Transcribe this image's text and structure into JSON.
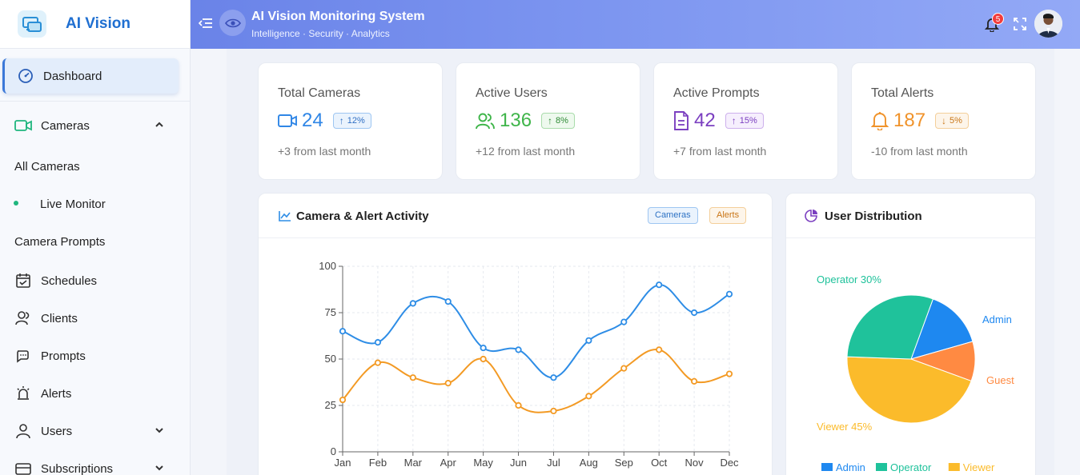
{
  "app": {
    "name": "AI Vision"
  },
  "header": {
    "title": "AI Vision Monitoring System",
    "subtitle": "Intelligence · Security · Analytics",
    "notification_count": "5"
  },
  "sidebar": {
    "items": [
      {
        "label": "Dashboard",
        "icon": "dashboard-gauge-icon",
        "active": true
      },
      {
        "label": "Cameras",
        "icon": "video-camera-icon",
        "expanded": true
      },
      {
        "label": "All Cameras",
        "sub": true
      },
      {
        "label": "Live Monitor",
        "sub": true,
        "selected": true
      },
      {
        "label": "Camera Prompts",
        "sub": true
      },
      {
        "label": "Schedules",
        "icon": "calendar-icon"
      },
      {
        "label": "Clients",
        "icon": "users-icon"
      },
      {
        "label": "Prompts",
        "icon": "chat-bubbles-icon"
      },
      {
        "label": "Alerts",
        "icon": "alarm-siren-icon"
      },
      {
        "label": "Users",
        "icon": "user-icon",
        "expanded": false
      },
      {
        "label": "Subscriptions",
        "icon": "card-icon",
        "expanded": false
      }
    ]
  },
  "stats": [
    {
      "label": "Total Cameras",
      "value": "24",
      "change": "12%",
      "direction": "up",
      "footer": "+3 from last month",
      "color": "#2f86e6",
      "icon": "video-camera-icon"
    },
    {
      "label": "Active Users",
      "value": "136",
      "change": "8%",
      "direction": "up",
      "footer": "+12 from last month",
      "color": "#3fb54a",
      "icon": "users-icon"
    },
    {
      "label": "Active Prompts",
      "value": "42",
      "change": "15%",
      "direction": "up",
      "footer": "+7 from last month",
      "color": "#7b3fc0",
      "icon": "document-icon"
    },
    {
      "label": "Total Alerts",
      "value": "187",
      "change": "5%",
      "direction": "down",
      "footer": "-10 from last month",
      "color": "#f0932b",
      "icon": "bell-icon"
    }
  ],
  "activity_panel": {
    "title": "Camera & Alert Activity",
    "legend": [
      "Cameras",
      "Alerts"
    ]
  },
  "distribution_panel": {
    "title": "User Distribution"
  },
  "chart_data": [
    {
      "type": "line",
      "title": "Camera & Alert Activity",
      "categories": [
        "Jan",
        "Feb",
        "Mar",
        "Apr",
        "May",
        "Jun",
        "Jul",
        "Aug",
        "Sep",
        "Oct",
        "Nov",
        "Dec"
      ],
      "y_ticks": [
        "0",
        "25",
        "50",
        "75",
        "100"
      ],
      "ylim": [
        0,
        100
      ],
      "grid": true,
      "series": [
        {
          "name": "Cameras",
          "color": "#2e8de6",
          "values": [
            65,
            59,
            80,
            81,
            56,
            55,
            40,
            60,
            70,
            90,
            75,
            85
          ]
        },
        {
          "name": "Alerts",
          "color": "#f39a24",
          "values": [
            28,
            48,
            40,
            37,
            50,
            25,
            22,
            30,
            45,
            55,
            38,
            42
          ]
        }
      ]
    },
    {
      "type": "pie",
      "title": "User Distribution",
      "slices": [
        {
          "name": "Admin",
          "value": 15,
          "label": "Admin",
          "color": "#1e88f0"
        },
        {
          "name": "Operator",
          "value": 30,
          "label": "Operator 30%",
          "color": "#1fc29b"
        },
        {
          "name": "Viewer",
          "value": 45,
          "label": "Viewer 45%",
          "color": "#fbbb2b"
        },
        {
          "name": "Guest",
          "value": 10,
          "label": "Guest",
          "color": "#ff8a42"
        }
      ],
      "legend": [
        "Admin",
        "Operator",
        "Viewer"
      ],
      "legend_placement": "bottom"
    }
  ]
}
